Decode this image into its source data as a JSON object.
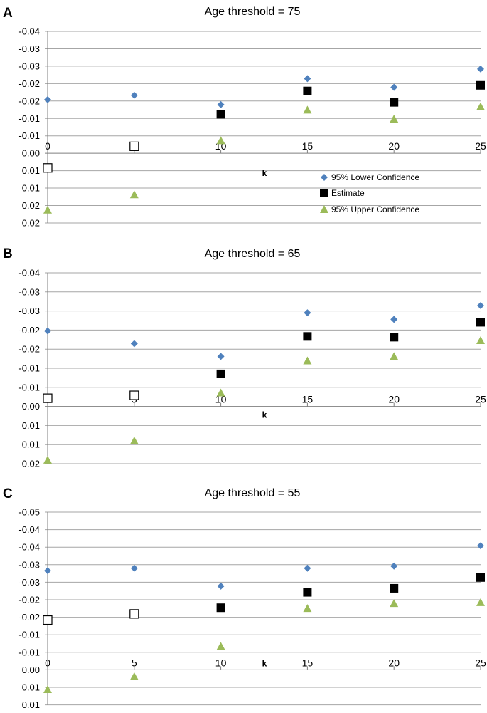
{
  "colors": {
    "lower": "#4f81bd",
    "estimate": "#000000",
    "upper": "#9bbb59",
    "grid": "#a6a6a6"
  },
  "legend": [
    "95% Lower Confidence",
    "Estimate",
    "95% Upper Confidence"
  ],
  "chart_data": [
    {
      "panel": "A",
      "type": "scatter",
      "title": "Age threshold = 75",
      "xlabel": "k",
      "ylabel": "",
      "x": [
        0,
        5,
        10,
        15,
        20,
        25
      ],
      "x_ticks": [
        "0",
        "5",
        "10",
        "15",
        "20",
        "25"
      ],
      "y_ticks": [
        "-0.04",
        "-0.03",
        "-0.03",
        "-0.02",
        "-0.02",
        "-0.01",
        "-0.01",
        "0.00",
        "0.01",
        "0.01",
        "0.02",
        "0.02"
      ],
      "ylim": [
        -0.04,
        0.0175
      ],
      "grid": true,
      "legend_position": "inside-bottom-right",
      "series": [
        {
          "name": "95% Lower Confidence",
          "marker": "diamond",
          "values": [
            -0.0195,
            -0.0208,
            -0.018,
            -0.0258,
            -0.0232,
            -0.0287
          ]
        },
        {
          "name": "Estimate",
          "marker": "square",
          "values": [
            0.001,
            -0.0055,
            -0.0151,
            -0.0221,
            -0.0187,
            -0.0238
          ],
          "hollow": [
            true,
            true,
            false,
            false,
            false,
            false
          ]
        },
        {
          "name": "95% Upper Confidence",
          "marker": "triangle",
          "values": [
            0.0136,
            0.009,
            -0.0072,
            -0.0164,
            -0.0137,
            -0.0174
          ]
        }
      ]
    },
    {
      "panel": "B",
      "type": "scatter",
      "title": "Age threshold = 65",
      "xlabel": "k",
      "ylabel": "",
      "x": [
        0,
        5,
        10,
        15,
        20,
        25
      ],
      "x_ticks": [
        "0",
        "5",
        "10",
        "15",
        "20",
        "25"
      ],
      "y_ticks": [
        "-0.04",
        "-0.03",
        "-0.03",
        "-0.02",
        "-0.02",
        "-0.01",
        "-0.01",
        "0.00",
        "0.01",
        "0.01",
        "0.02"
      ],
      "ylim": [
        -0.04,
        0.0125
      ],
      "grid": true,
      "series": [
        {
          "name": "95% Lower Confidence",
          "marker": "diamond",
          "values": [
            -0.024,
            -0.0205,
            -0.017,
            -0.029,
            -0.0272,
            -0.031
          ]
        },
        {
          "name": "Estimate",
          "marker": "square",
          "values": [
            -0.0055,
            -0.0063,
            -0.0122,
            -0.0225,
            -0.0223,
            -0.0264
          ],
          "hollow": [
            true,
            true,
            false,
            false,
            false,
            false
          ]
        },
        {
          "name": "95% Upper Confidence",
          "marker": "triangle",
          "values": [
            0.0115,
            0.0062,
            -0.007,
            -0.0158,
            -0.017,
            -0.0214
          ]
        }
      ]
    },
    {
      "panel": "C",
      "type": "scatter",
      "title": "Age threshold = 55",
      "xlabel": "k",
      "ylabel": "",
      "x": [
        0,
        5,
        10,
        15,
        20,
        25
      ],
      "x_ticks": [
        "0",
        "5",
        "10",
        "15",
        "20",
        "25"
      ],
      "y_ticks": [
        "-0.05",
        "-0.04",
        "-0.04",
        "-0.03",
        "-0.03",
        "-0.02",
        "-0.02",
        "-0.01",
        "-0.01",
        "0.00",
        "0.01",
        "0.01"
      ],
      "ylim": [
        -0.05,
        0.0125
      ],
      "grid": true,
      "series": [
        {
          "name": "95% Lower Confidence",
          "marker": "diamond",
          "values": [
            -0.031,
            -0.0318,
            -0.026,
            -0.0318,
            -0.0325,
            -0.0391
          ]
        },
        {
          "name": "Estimate",
          "marker": "square",
          "values": [
            -0.015,
            -0.017,
            -0.019,
            -0.024,
            -0.0253,
            -0.0288
          ],
          "hollow": [
            true,
            true,
            false,
            false,
            false,
            false
          ]
        },
        {
          "name": "95% Upper Confidence",
          "marker": "triangle",
          "values": [
            0.0075,
            0.0033,
            -0.0065,
            -0.0188,
            -0.0204,
            -0.0207
          ]
        }
      ]
    }
  ]
}
